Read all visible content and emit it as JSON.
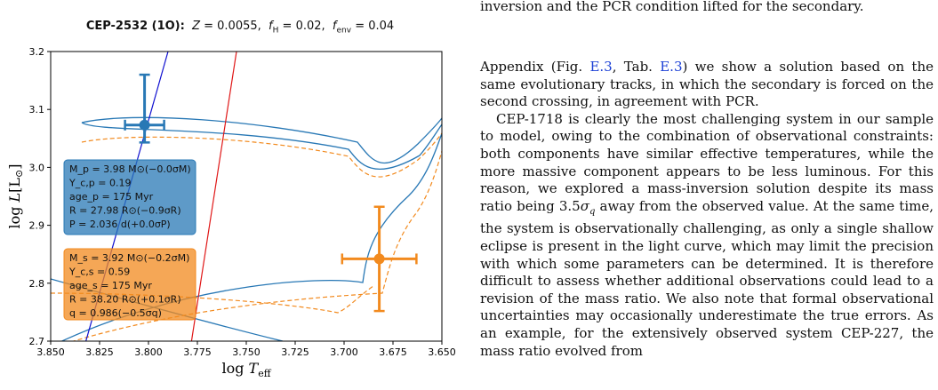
{
  "header_fragments": {
    "left": "",
    "right": "inversion and the PCR condition lifted for the secondary."
  },
  "figure": {
    "title_name": "CEP-2532 (1O):",
    "title_z": "Z = 0.0055,",
    "title_fh": "f_H = 0.02,",
    "title_fenv": "f_env = 0.04"
  },
  "chart_data": {
    "type": "scatter",
    "xlabel": "log T_eff",
    "ylabel": "log L[L⊙]",
    "xlim": [
      3.85,
      3.65
    ],
    "ylim": [
      2.7,
      3.2
    ],
    "x_ticks": [
      "3.850",
      "3.825",
      "3.800",
      "3.775",
      "3.750",
      "3.725",
      "3.700",
      "3.675",
      "3.650"
    ],
    "y_ticks": [
      "2.7",
      "2.8",
      "2.9",
      "3.0",
      "3.1",
      "3.2"
    ],
    "points": [
      {
        "name": "primary",
        "x": 3.802,
        "y": 3.073,
        "xerr": 0.01,
        "yerr_low": 0.03,
        "yerr_high": 0.087,
        "color": "#2878b5"
      },
      {
        "name": "secondary",
        "x": 3.682,
        "y": 2.842,
        "xerr": 0.019,
        "yerr": 0.09,
        "color": "#f28a1e"
      }
    ],
    "instability_strip": [
      {
        "edge": "blue",
        "color": "#1010d0",
        "x": [
          3.832,
          3.79
        ],
        "y": [
          2.7,
          3.2
        ]
      },
      {
        "edge": "red",
        "color": "#e01818",
        "x": [
          3.778,
          3.755
        ],
        "y": [
          2.7,
          3.2
        ]
      }
    ],
    "grid": false,
    "legend": "none",
    "boxes": [
      {
        "color": "#2878b5",
        "lines": [
          "M_p = 3.98 M⊙(−0.0σM)",
          "Y_c,p = 0.19",
          "age_p = 175 Myr",
          "R = 27.98 R⊙(−0.9σR)",
          "P = 2.036 d(+0.0σP)"
        ]
      },
      {
        "color": "#f28a1e",
        "lines": [
          "M_s = 3.92 M⊙(−0.2σM)",
          "Y_c,s = 0.59",
          "age_s = 175 Myr",
          "R = 38.20 R⊙(+0.1σR)",
          "q = 0.986(−0.5σq)"
        ]
      }
    ]
  },
  "text": {
    "para1": "Appendix (Fig. E.3, Tab. E.3) we show a solution based on the same evolutionary tracks, in which the secondary is forced on the second crossing, in agreement with PCR.",
    "para2": "CEP-1718 is clearly the most challenging system in our sample to model, owing to the combination of observational constraints: both components have similar effective temperatures, while the more massive component appears to be less luminous. For this reason, we explored a mass-inversion solution despite its mass ratio being 3.5σq away from the observed value. At the same time, the system is observationally challenging, as only a single shallow eclipse is present in the light curve, which may limit the precision with which some parameters can be determined. It is therefore difficult to assess whether additional observations could lead to a revision of the mass ratio. We also note that formal observational uncertainties may occasionally underestimate the true errors. As an example, for the extensively observed system CEP-227, the mass ratio evolved from"
  }
}
